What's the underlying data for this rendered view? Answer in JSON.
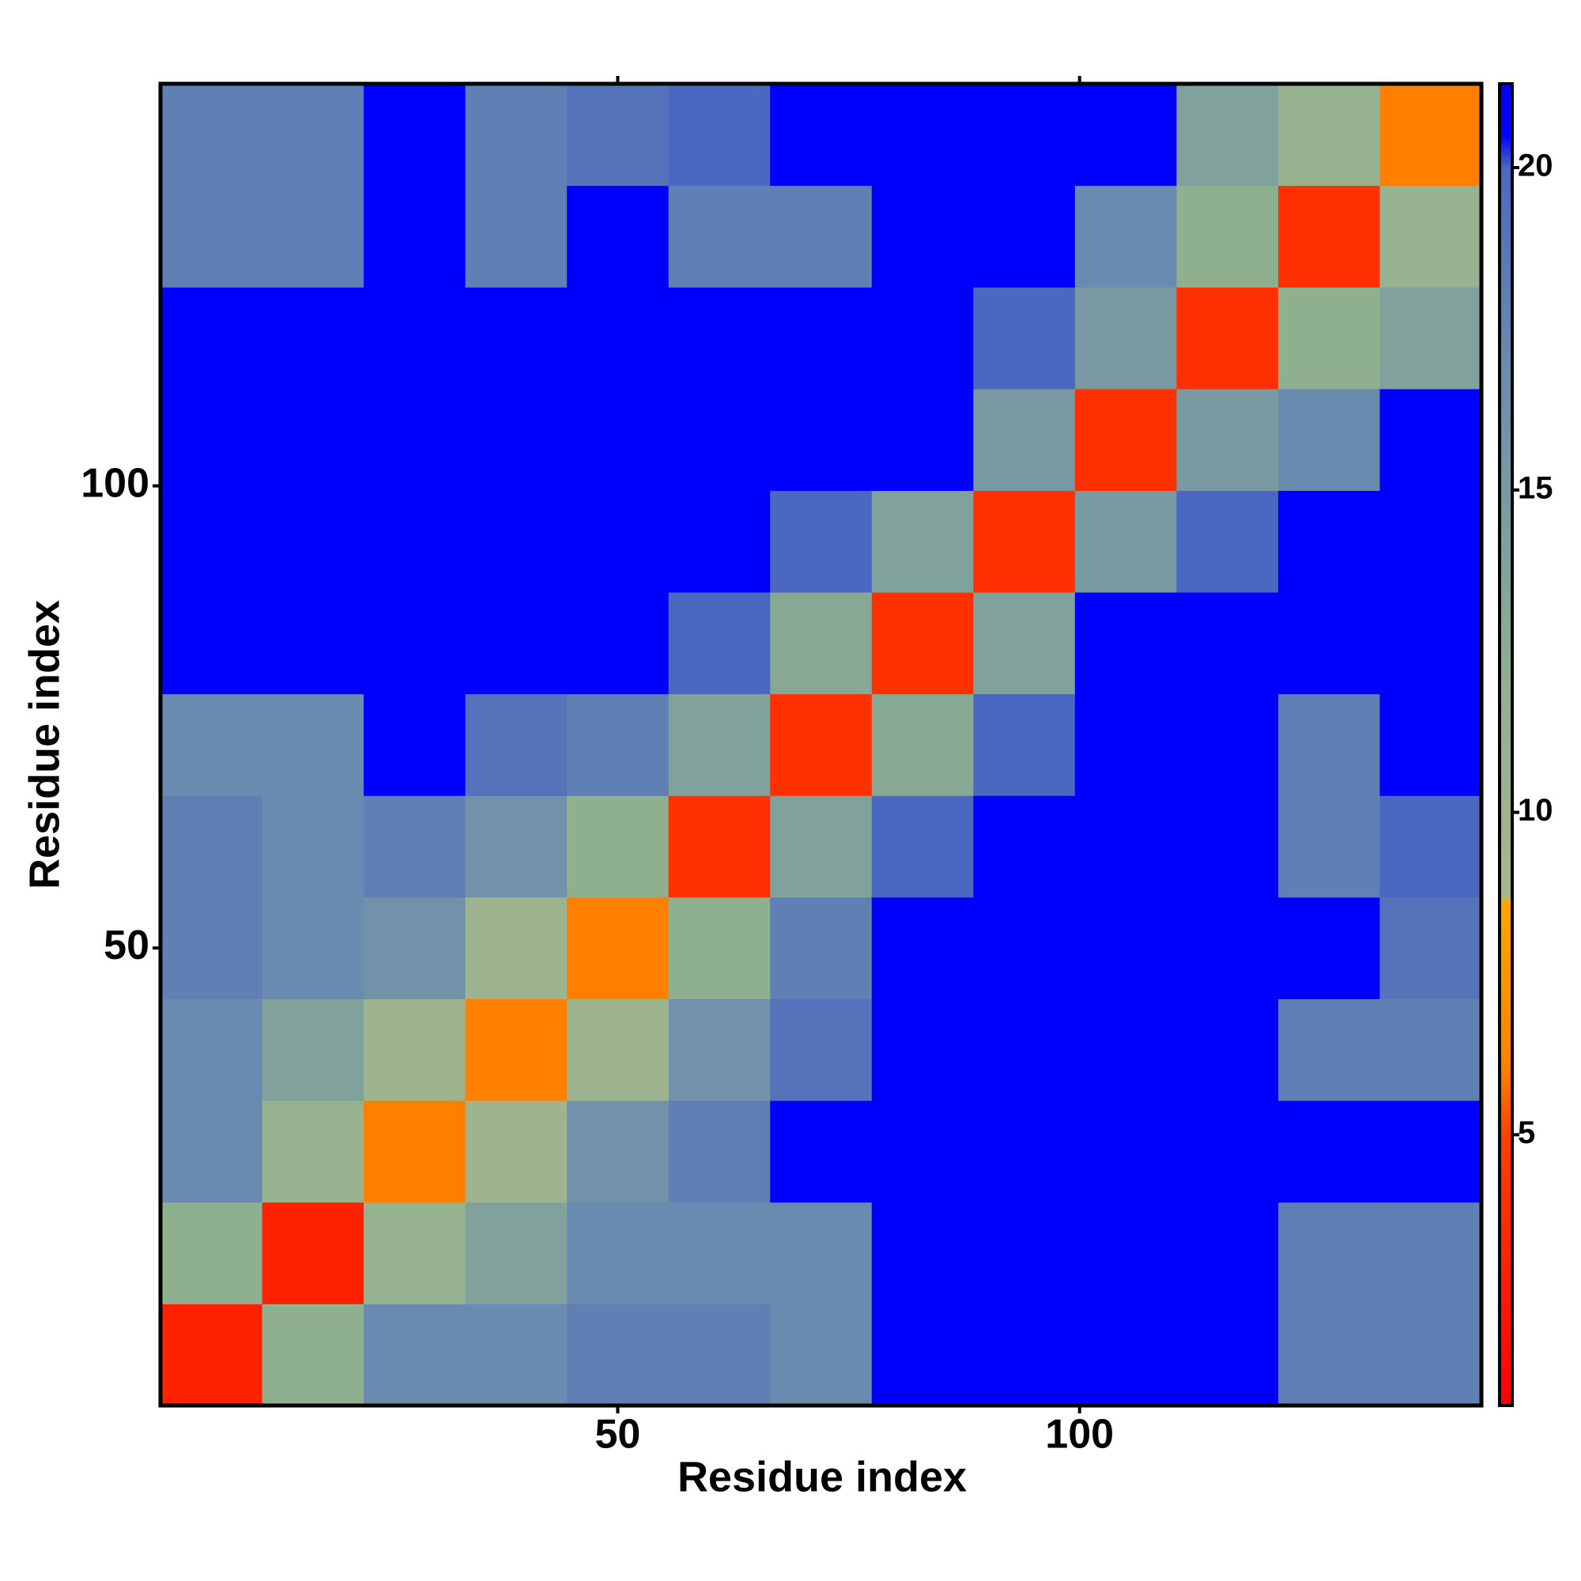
{
  "chart_data": {
    "type": "heatmap",
    "x_label": "Residue index",
    "y_label": "Residue index",
    "xbins": [
      0.5,
      11.5,
      22.5,
      33.5,
      44.5,
      55.5,
      66.5,
      77.5,
      88.5,
      99.5,
      110.5,
      121.5,
      132.5,
      143.5
    ],
    "ybins": [
      0.5,
      11.5,
      22.5,
      33.5,
      44.5,
      55.5,
      66.5,
      77.5,
      88.5,
      99.5,
      110.5,
      121.5,
      132.5,
      143.5
    ],
    "xlim": [
      0.5,
      143.5
    ],
    "ylim": [
      0.5,
      143.5
    ],
    "xticks": [
      50,
      100
    ],
    "yticks": [
      50,
      100
    ],
    "z": [
      [
        3,
        12,
        17,
        17,
        18,
        18,
        17,
        21,
        21,
        21,
        21,
        18,
        18
      ],
      [
        12,
        3,
        11,
        14,
        17,
        17,
        17,
        21,
        21,
        21,
        21,
        18,
        18
      ],
      [
        17,
        11,
        6,
        10,
        16,
        18,
        21,
        21,
        21,
        21,
        21,
        21,
        21
      ],
      [
        17,
        14,
        10,
        6,
        10,
        16,
        19,
        21,
        21,
        21,
        21,
        18,
        18
      ],
      [
        18,
        17,
        16,
        10,
        6,
        12,
        18,
        21,
        21,
        21,
        21,
        21,
        19
      ],
      [
        18,
        17,
        18,
        16,
        12,
        4,
        14,
        20,
        21,
        21,
        21,
        18,
        20
      ],
      [
        17,
        17,
        21,
        19,
        18,
        14,
        4,
        13,
        20,
        21,
        21,
        18,
        21
      ],
      [
        21,
        21,
        21,
        21,
        21,
        20,
        13,
        4,
        14,
        21,
        21,
        21,
        21
      ],
      [
        21,
        21,
        21,
        21,
        21,
        21,
        20,
        14,
        4,
        15,
        20,
        21,
        21
      ],
      [
        21,
        21,
        21,
        21,
        21,
        21,
        21,
        21,
        15,
        4,
        15,
        17,
        21
      ],
      [
        21,
        21,
        21,
        21,
        21,
        21,
        21,
        21,
        20,
        15,
        4,
        12,
        14
      ],
      [
        18,
        18,
        21,
        18,
        21,
        18,
        18,
        21,
        21,
        17,
        12,
        4,
        11
      ],
      [
        18,
        18,
        21,
        18,
        19,
        20,
        21,
        21,
        21,
        21,
        14,
        11,
        6
      ]
    ],
    "colorbar": {
      "lim": [
        0.8,
        21.3
      ],
      "ticks": [
        5,
        10,
        15,
        20
      ]
    },
    "colorscale": [
      [
        0.8,
        "#ff0000"
      ],
      [
        5,
        "#ff4000"
      ],
      [
        6,
        "#ff8000"
      ],
      [
        8.6,
        "#ffa500"
      ],
      [
        8.7,
        "#a6b68e"
      ],
      [
        12,
        "#8fb08f"
      ],
      [
        17,
        "#6a8ab0"
      ],
      [
        20,
        "#4a68c0"
      ],
      [
        20.5,
        "#0000ff"
      ],
      [
        21.3,
        "#0000ff"
      ]
    ]
  }
}
